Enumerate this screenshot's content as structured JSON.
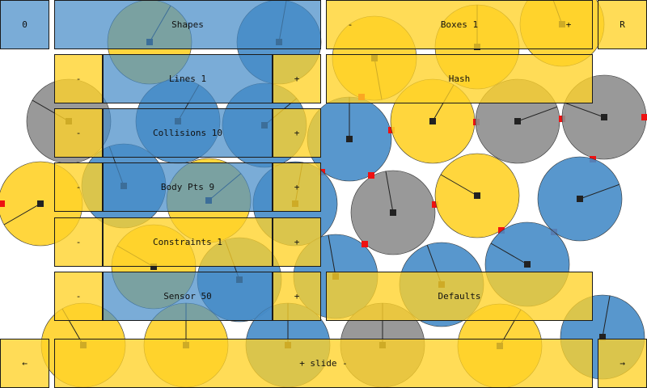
{
  "colors": {
    "yellow": "#ffd228",
    "blue": "#468cc8",
    "gray": "#8e8e8e",
    "contact": "#ee1111",
    "marker": "#222222",
    "text": "#111111"
  },
  "top_bar": {
    "zero_label": "0",
    "shapes_label": "Shapes",
    "boxes_minus": "-",
    "boxes_label": "Boxes 1",
    "boxes_plus": "+",
    "reset_label": "R"
  },
  "controls": {
    "lines": {
      "minus": "-",
      "label": "Lines 1",
      "plus": "+"
    },
    "hash": {
      "label": "Hash"
    },
    "collisions": {
      "minus": "-",
      "label": "Collisions 10",
      "plus": "+"
    },
    "body_pts": {
      "minus": "-",
      "label": "Body Pts 9",
      "plus": "+"
    },
    "constraints": {
      "minus": "-",
      "label": "Constraints 1",
      "plus": "+"
    },
    "sensor": {
      "minus": "-",
      "label": "Sensor 50",
      "plus": "+"
    },
    "defaults": {
      "label": "Defaults"
    }
  },
  "bottom_bar": {
    "left_arrow": "←",
    "slide_label": "+ slide -",
    "right_arrow": "→"
  }
}
